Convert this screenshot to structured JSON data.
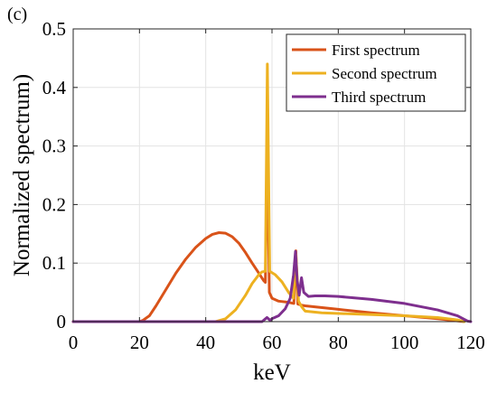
{
  "panel_label": "(c)",
  "chart_data": {
    "type": "line",
    "title": "",
    "xlabel": "keV",
    "ylabel": "Normalized spectrum)",
    "xlim": [
      0,
      120
    ],
    "ylim": [
      0,
      0.5
    ],
    "xticks": [
      0,
      20,
      40,
      60,
      80,
      100,
      120
    ],
    "yticks": [
      0,
      0.1,
      0.2,
      0.3,
      0.4,
      0.5
    ],
    "xtick_labels": [
      "0",
      "20",
      "40",
      "60",
      "80",
      "100",
      "120"
    ],
    "ytick_labels": [
      "0",
      "0.1",
      "0.2",
      "0.3",
      "0.4",
      "0.5"
    ],
    "grid": true,
    "legend_position": "top-right",
    "series": [
      {
        "name": "First spectrum",
        "color": "#d95319",
        "points": [
          [
            0,
            0
          ],
          [
            20,
            0
          ],
          [
            21,
            0.002
          ],
          [
            23,
            0.01
          ],
          [
            25,
            0.027
          ],
          [
            28,
            0.055
          ],
          [
            31,
            0.083
          ],
          [
            34,
            0.107
          ],
          [
            37,
            0.127
          ],
          [
            40,
            0.142
          ],
          [
            42,
            0.149
          ],
          [
            44,
            0.152
          ],
          [
            46,
            0.151
          ],
          [
            48,
            0.145
          ],
          [
            50,
            0.134
          ],
          [
            52,
            0.118
          ],
          [
            54,
            0.1
          ],
          [
            56,
            0.083
          ],
          [
            57.5,
            0.07
          ],
          [
            58,
            0.067
          ],
          [
            58.6,
            0.316
          ],
          [
            59.2,
            0.05
          ],
          [
            60,
            0.04
          ],
          [
            62,
            0.035
          ],
          [
            65,
            0.033
          ],
          [
            66.6,
            0.031
          ],
          [
            67.2,
            0.121
          ],
          [
            67.8,
            0.03
          ],
          [
            69,
            0.028
          ],
          [
            70,
            0.027
          ],
          [
            80,
            0.021
          ],
          [
            90,
            0.015
          ],
          [
            100,
            0.01
          ],
          [
            110,
            0.005
          ],
          [
            115,
            0.002
          ],
          [
            118,
            0
          ]
        ]
      },
      {
        "name": "Second spectrum",
        "color": "#edb120",
        "points": [
          [
            0,
            0
          ],
          [
            43,
            0
          ],
          [
            46,
            0.005
          ],
          [
            49,
            0.02
          ],
          [
            52,
            0.045
          ],
          [
            54,
            0.065
          ],
          [
            56,
            0.08
          ],
          [
            57,
            0.085
          ],
          [
            58,
            0.086
          ],
          [
            58.6,
            0.44
          ],
          [
            59.3,
            0.086
          ],
          [
            61,
            0.08
          ],
          [
            63,
            0.068
          ],
          [
            65,
            0.05
          ],
          [
            66.5,
            0.04
          ],
          [
            67.2,
            0.115
          ],
          [
            68,
            0.035
          ],
          [
            69,
            0.025
          ],
          [
            70,
            0.018
          ],
          [
            75,
            0.015
          ],
          [
            100,
            0.01
          ],
          [
            110,
            0.007
          ],
          [
            116,
            0.003
          ],
          [
            118,
            0
          ]
        ]
      },
      {
        "name": "Third spectrum",
        "color": "#7e2f8e",
        "points": [
          [
            0,
            0
          ],
          [
            57,
            0
          ],
          [
            58.5,
            0.007
          ],
          [
            59.5,
            0.002
          ],
          [
            60,
            0.005
          ],
          [
            62,
            0.01
          ],
          [
            64,
            0.022
          ],
          [
            65.5,
            0.04
          ],
          [
            66.5,
            0.08
          ],
          [
            67.1,
            0.12
          ],
          [
            67.6,
            0.07
          ],
          [
            68.2,
            0.045
          ],
          [
            68.9,
            0.075
          ],
          [
            69.6,
            0.05
          ],
          [
            71,
            0.043
          ],
          [
            73,
            0.044
          ],
          [
            76,
            0.044
          ],
          [
            80,
            0.043
          ],
          [
            90,
            0.038
          ],
          [
            100,
            0.031
          ],
          [
            110,
            0.02
          ],
          [
            116,
            0.01
          ],
          [
            118,
            0.004
          ],
          [
            119,
            0.001
          ],
          [
            120,
            0
          ]
        ]
      }
    ]
  }
}
